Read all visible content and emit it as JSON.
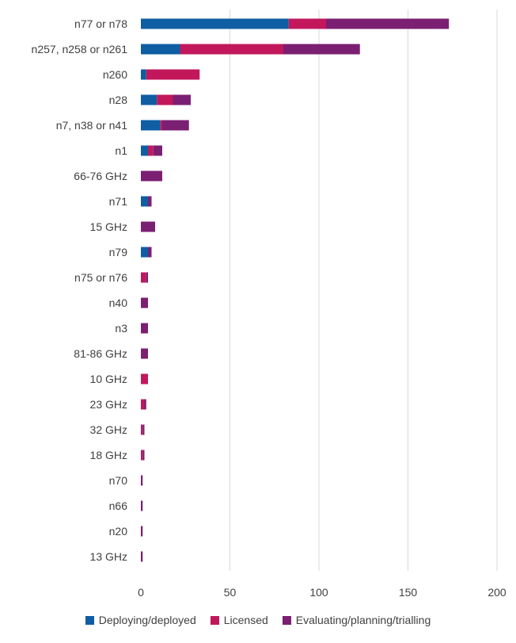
{
  "chart_data": {
    "type": "bar",
    "orientation": "horizontal",
    "stacked": true,
    "categories": [
      "n77 or n78",
      "n257, n258 or n261",
      "n260",
      "n28",
      "n7, n38 or n41",
      "n1",
      "66-76 GHz",
      "n71",
      "15 GHz",
      "n79",
      "n75 or n76",
      "n40",
      "n3",
      "81-86 GHz",
      "10 GHz",
      "23 GHz",
      "32 GHz",
      "18 GHz",
      "n70",
      "n66",
      "n20",
      "13 GHz"
    ],
    "series": [
      {
        "name": "Deploying/deployed",
        "color": "#0f5da3",
        "values": [
          83,
          22,
          3,
          9,
          11,
          4,
          0,
          4,
          0,
          4,
          0,
          0,
          0,
          0,
          0,
          0,
          0,
          0,
          0,
          0,
          0,
          0
        ]
      },
      {
        "name": "Licensed",
        "color": "#c2185b",
        "values": [
          21,
          58,
          30,
          9,
          1,
          3,
          0,
          0,
          0,
          0,
          3,
          0,
          0,
          0,
          4,
          2,
          1,
          1,
          0,
          0,
          0,
          0
        ]
      },
      {
        "name": "Evaluating/planning/trialling",
        "color": "#7b1f73",
        "values": [
          69,
          43,
          0,
          10,
          15,
          5,
          12,
          2,
          8,
          2,
          1,
          4,
          4,
          4,
          0,
          1,
          1,
          1,
          1,
          1,
          1,
          1
        ]
      }
    ],
    "xlim": [
      0,
      200
    ],
    "x_ticks": [
      0,
      50,
      100,
      150,
      200
    ],
    "grid": true,
    "legend_position": "bottom"
  }
}
